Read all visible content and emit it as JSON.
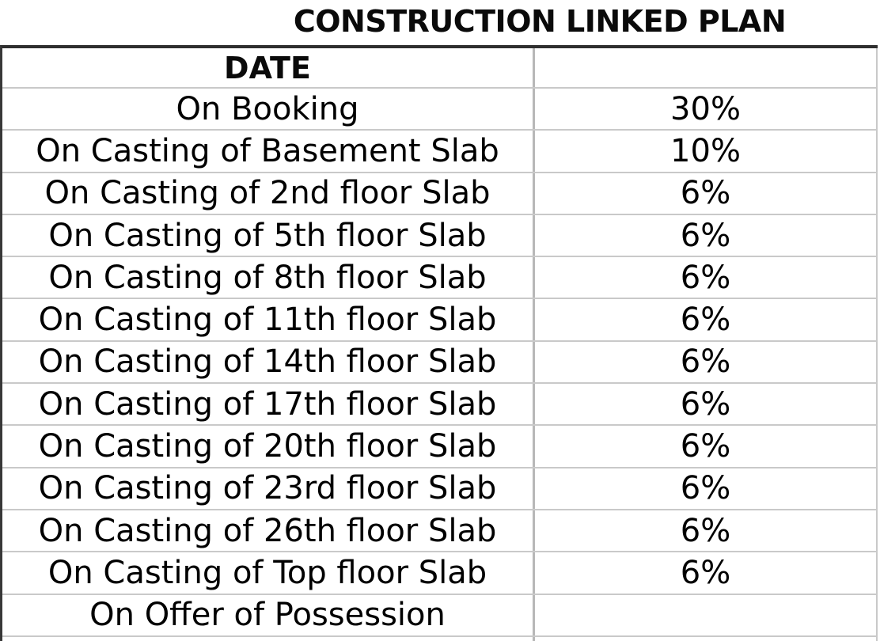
{
  "page": {
    "title": "CONSTRUCTION LINKED PLAN"
  },
  "plan_table": {
    "header": {
      "milestone": "DATE",
      "value": ""
    },
    "rows": [
      {
        "milestone": "On Booking",
        "percentage": "30%"
      },
      {
        "milestone": "On Casting of Basement Slab",
        "percentage": "10%"
      },
      {
        "milestone": "On Casting of 2nd floor Slab",
        "percentage": "6%"
      },
      {
        "milestone": "On Casting of 5th floor Slab",
        "percentage": "6%"
      },
      {
        "milestone": "On Casting of 8th floor Slab",
        "percentage": "6%"
      },
      {
        "milestone": "On Casting of 11th floor Slab",
        "percentage": "6%"
      },
      {
        "milestone": "On Casting of 14th floor Slab",
        "percentage": "6%"
      },
      {
        "milestone": "On Casting of 17th floor Slab",
        "percentage": "6%"
      },
      {
        "milestone": "On Casting of 20th floor Slab",
        "percentage": "6%"
      },
      {
        "milestone": "On Casting of 23rd floor Slab",
        "percentage": "6%"
      },
      {
        "milestone": "On Casting of 26th floor Slab",
        "percentage": "6%"
      },
      {
        "milestone": "On Casting of Top floor Slab",
        "percentage": "6%"
      },
      {
        "milestone": "On Offer of Possession",
        "percentage": ""
      }
    ],
    "colors": {
      "text": "#000000",
      "outer_border_dark": "#2f2f2f",
      "gridline": "#c9c9c9",
      "column_divider": "#b8b8b8",
      "background": "#ffffff"
    }
  }
}
